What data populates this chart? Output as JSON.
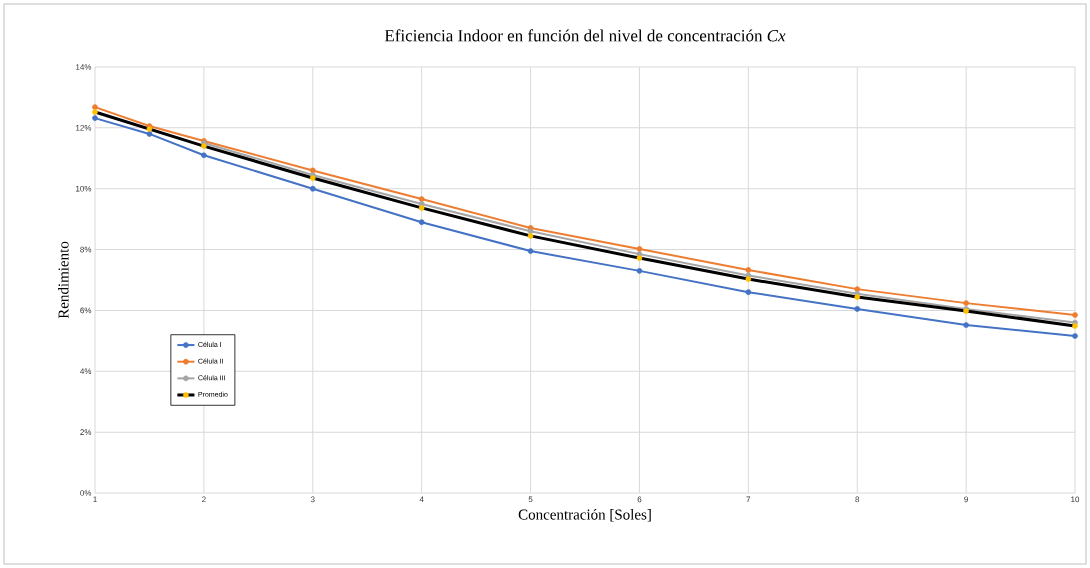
{
  "chart_data": {
    "type": "line",
    "title": "Eficiencia Indoor en función del nivel de concentración *Cx*",
    "xlabel": "Concentración [Soles]",
    "ylabel": "Rendimiento",
    "x": [
      1,
      1.5,
      2,
      3,
      4,
      5,
      6,
      7,
      8,
      9,
      10
    ],
    "series": [
      {
        "name": "Célula I",
        "color": "#4472c4",
        "values": [
          12.32,
          11.8,
          11.1,
          10.0,
          8.9,
          7.95,
          7.3,
          6.6,
          6.05,
          5.52,
          5.16
        ]
      },
      {
        "name": "Célula II",
        "color": "#ed7d31",
        "values": [
          12.68,
          12.06,
          11.57,
          10.6,
          9.66,
          8.71,
          8.02,
          7.33,
          6.7,
          6.24,
          5.85
        ]
      },
      {
        "name": "Célula III",
        "color": "#a5a5a5",
        "values": [
          null,
          null,
          11.5,
          10.45,
          9.5,
          8.6,
          7.85,
          7.15,
          6.55,
          6.05,
          5.6
        ]
      },
      {
        "name": "Promedio",
        "color": "#000000",
        "colors": [
          "#ffc000",
          "#ffc000",
          "#ffc000",
          "#ffc000",
          "#ffc000",
          "#ffc000",
          "#ffc000",
          "#ffc000",
          "#ffc000",
          "#ffc000",
          "#ffc000"
        ],
        "values": [
          12.52,
          11.96,
          11.4,
          10.35,
          9.37,
          8.45,
          7.72,
          7.03,
          6.44,
          5.98,
          5.49
        ]
      }
    ],
    "xlim": [
      1,
      10
    ],
    "ylim": [
      0,
      14
    ],
    "xticks": [
      1,
      2,
      3,
      4,
      5,
      6,
      7,
      8,
      9,
      10
    ],
    "yticks": [
      {
        "value": 0,
        "label": "0%"
      },
      {
        "value": 2,
        "label": "2%"
      },
      {
        "value": 4,
        "label": "4%"
      },
      {
        "value": 6,
        "label": "6%"
      },
      {
        "value": 8,
        "label": "8%"
      },
      {
        "value": 10,
        "label": "10%"
      },
      {
        "value": 12,
        "label": "12%"
      },
      {
        "value": 14,
        "label": "14%"
      }
    ],
    "grid": true,
    "legend": "left",
    "marker": "circle",
    "line_style": "solid"
  }
}
